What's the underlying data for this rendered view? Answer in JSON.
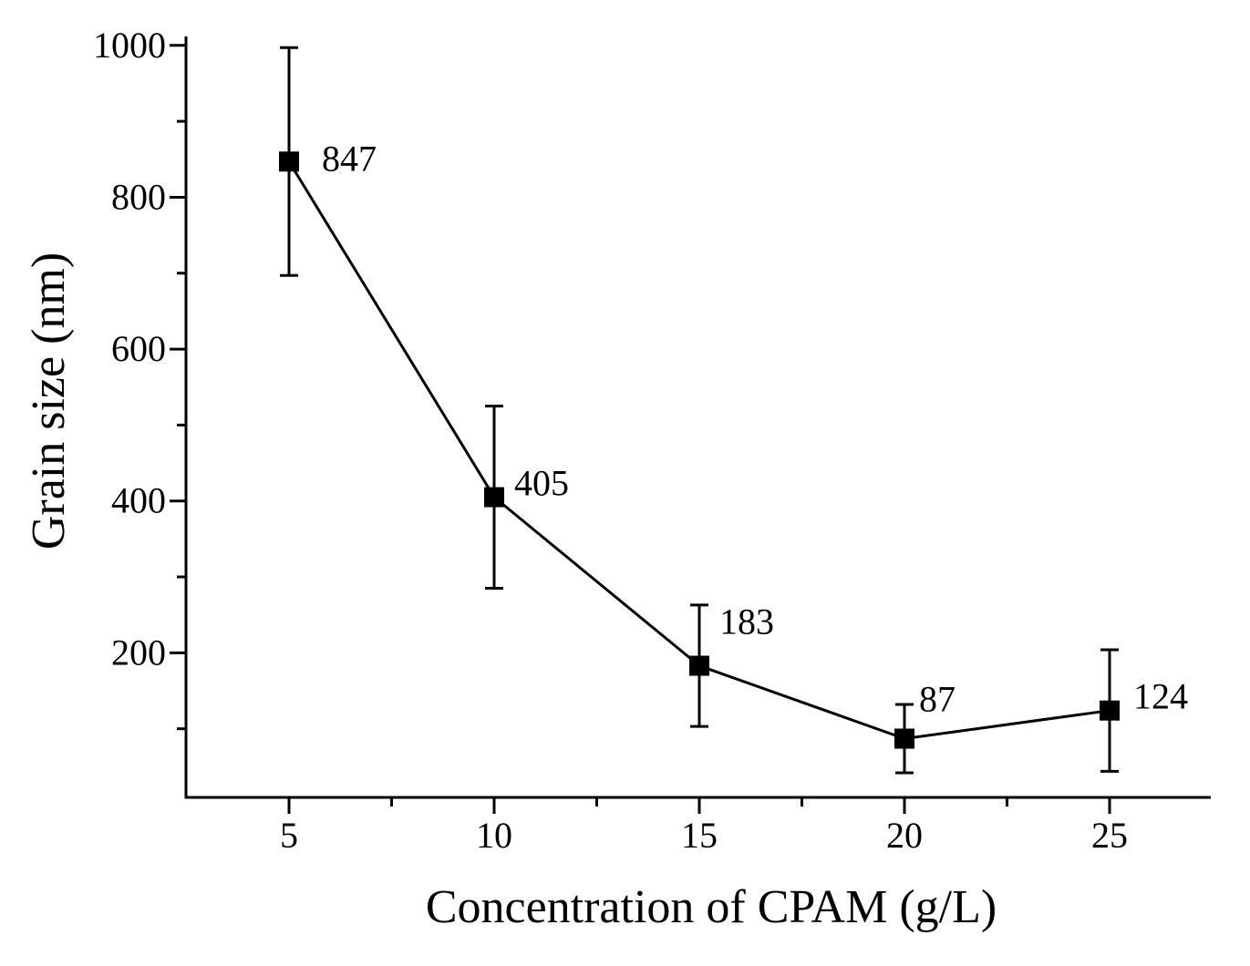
{
  "chart_data": {
    "type": "line",
    "xlabel": "Concentration of CPAM (g/L)",
    "ylabel": "Grain size (nm)",
    "xlim": [
      0,
      27.5
    ],
    "ylim": [
      0,
      1000
    ],
    "x_ticks": [
      5,
      10,
      15,
      20,
      25
    ],
    "x_tick_labels": [
      "5",
      "10",
      "15",
      "20",
      "25"
    ],
    "y_ticks": [
      200,
      400,
      600,
      800,
      1000
    ],
    "y_tick_labels": [
      "200",
      "400",
      "600",
      "800",
      "1000"
    ],
    "grid": false,
    "series": [
      {
        "x": [
          5,
          10,
          15,
          20,
          25
        ],
        "y": [
          847,
          405,
          183,
          87,
          124
        ],
        "error": [
          150,
          120,
          80,
          45,
          80
        ],
        "labels": [
          "847",
          "405",
          "183",
          "87",
          "124"
        ],
        "marker": "square",
        "color": "#000000"
      }
    ]
  }
}
